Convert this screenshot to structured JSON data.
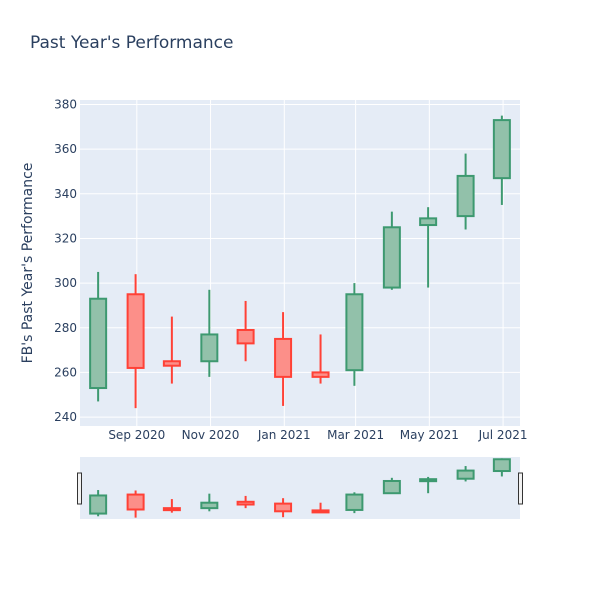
{
  "chart_data": {
    "type": "candlestick",
    "title": "Past Year's Performance",
    "ylabel": "FB's Past Year's Performance",
    "xlabel": "",
    "ylim": [
      236,
      382
    ],
    "y_ticks": [
      240,
      260,
      280,
      300,
      320,
      340,
      360,
      380
    ],
    "x_ticks": [
      {
        "label": "Sep 2020",
        "date": "2020-09-01"
      },
      {
        "label": "Nov 2020",
        "date": "2020-11-01"
      },
      {
        "label": "Jan 2021",
        "date": "2021-01-01"
      },
      {
        "label": "Mar 2021",
        "date": "2021-03-01"
      },
      {
        "label": "May 2021",
        "date": "2021-05-01"
      },
      {
        "label": "Jul 2021",
        "date": "2021-07-01"
      }
    ],
    "increasing_color": "#3d9970",
    "increasing_fill": "#92c1aa",
    "decreasing_color": "#ff4136",
    "decreasing_fill": "#fc8f89",
    "range_slider": true,
    "candles": [
      {
        "date": "2020-07-31",
        "open": 253,
        "high": 305,
        "low": 247,
        "close": 293
      },
      {
        "date": "2020-08-31",
        "open": 295,
        "high": 304,
        "low": 244,
        "close": 262
      },
      {
        "date": "2020-09-30",
        "open": 265,
        "high": 285,
        "low": 255,
        "close": 263
      },
      {
        "date": "2020-10-31",
        "open": 265,
        "high": 297,
        "low": 258,
        "close": 277
      },
      {
        "date": "2020-11-30",
        "open": 279,
        "high": 292,
        "low": 265,
        "close": 273
      },
      {
        "date": "2020-12-31",
        "open": 275,
        "high": 287,
        "low": 245,
        "close": 258
      },
      {
        "date": "2021-01-31",
        "open": 260,
        "high": 277,
        "low": 255,
        "close": 258
      },
      {
        "date": "2021-02-28",
        "open": 261,
        "high": 300,
        "low": 254,
        "close": 295
      },
      {
        "date": "2021-03-31",
        "open": 298,
        "high": 332,
        "low": 297,
        "close": 325
      },
      {
        "date": "2021-04-30",
        "open": 326,
        "high": 334,
        "low": 298,
        "close": 329
      },
      {
        "date": "2021-05-31",
        "open": 330,
        "high": 358,
        "low": 324,
        "close": 348
      },
      {
        "date": "2021-06-30",
        "open": 347,
        "high": 375,
        "low": 335,
        "close": 373
      }
    ]
  }
}
